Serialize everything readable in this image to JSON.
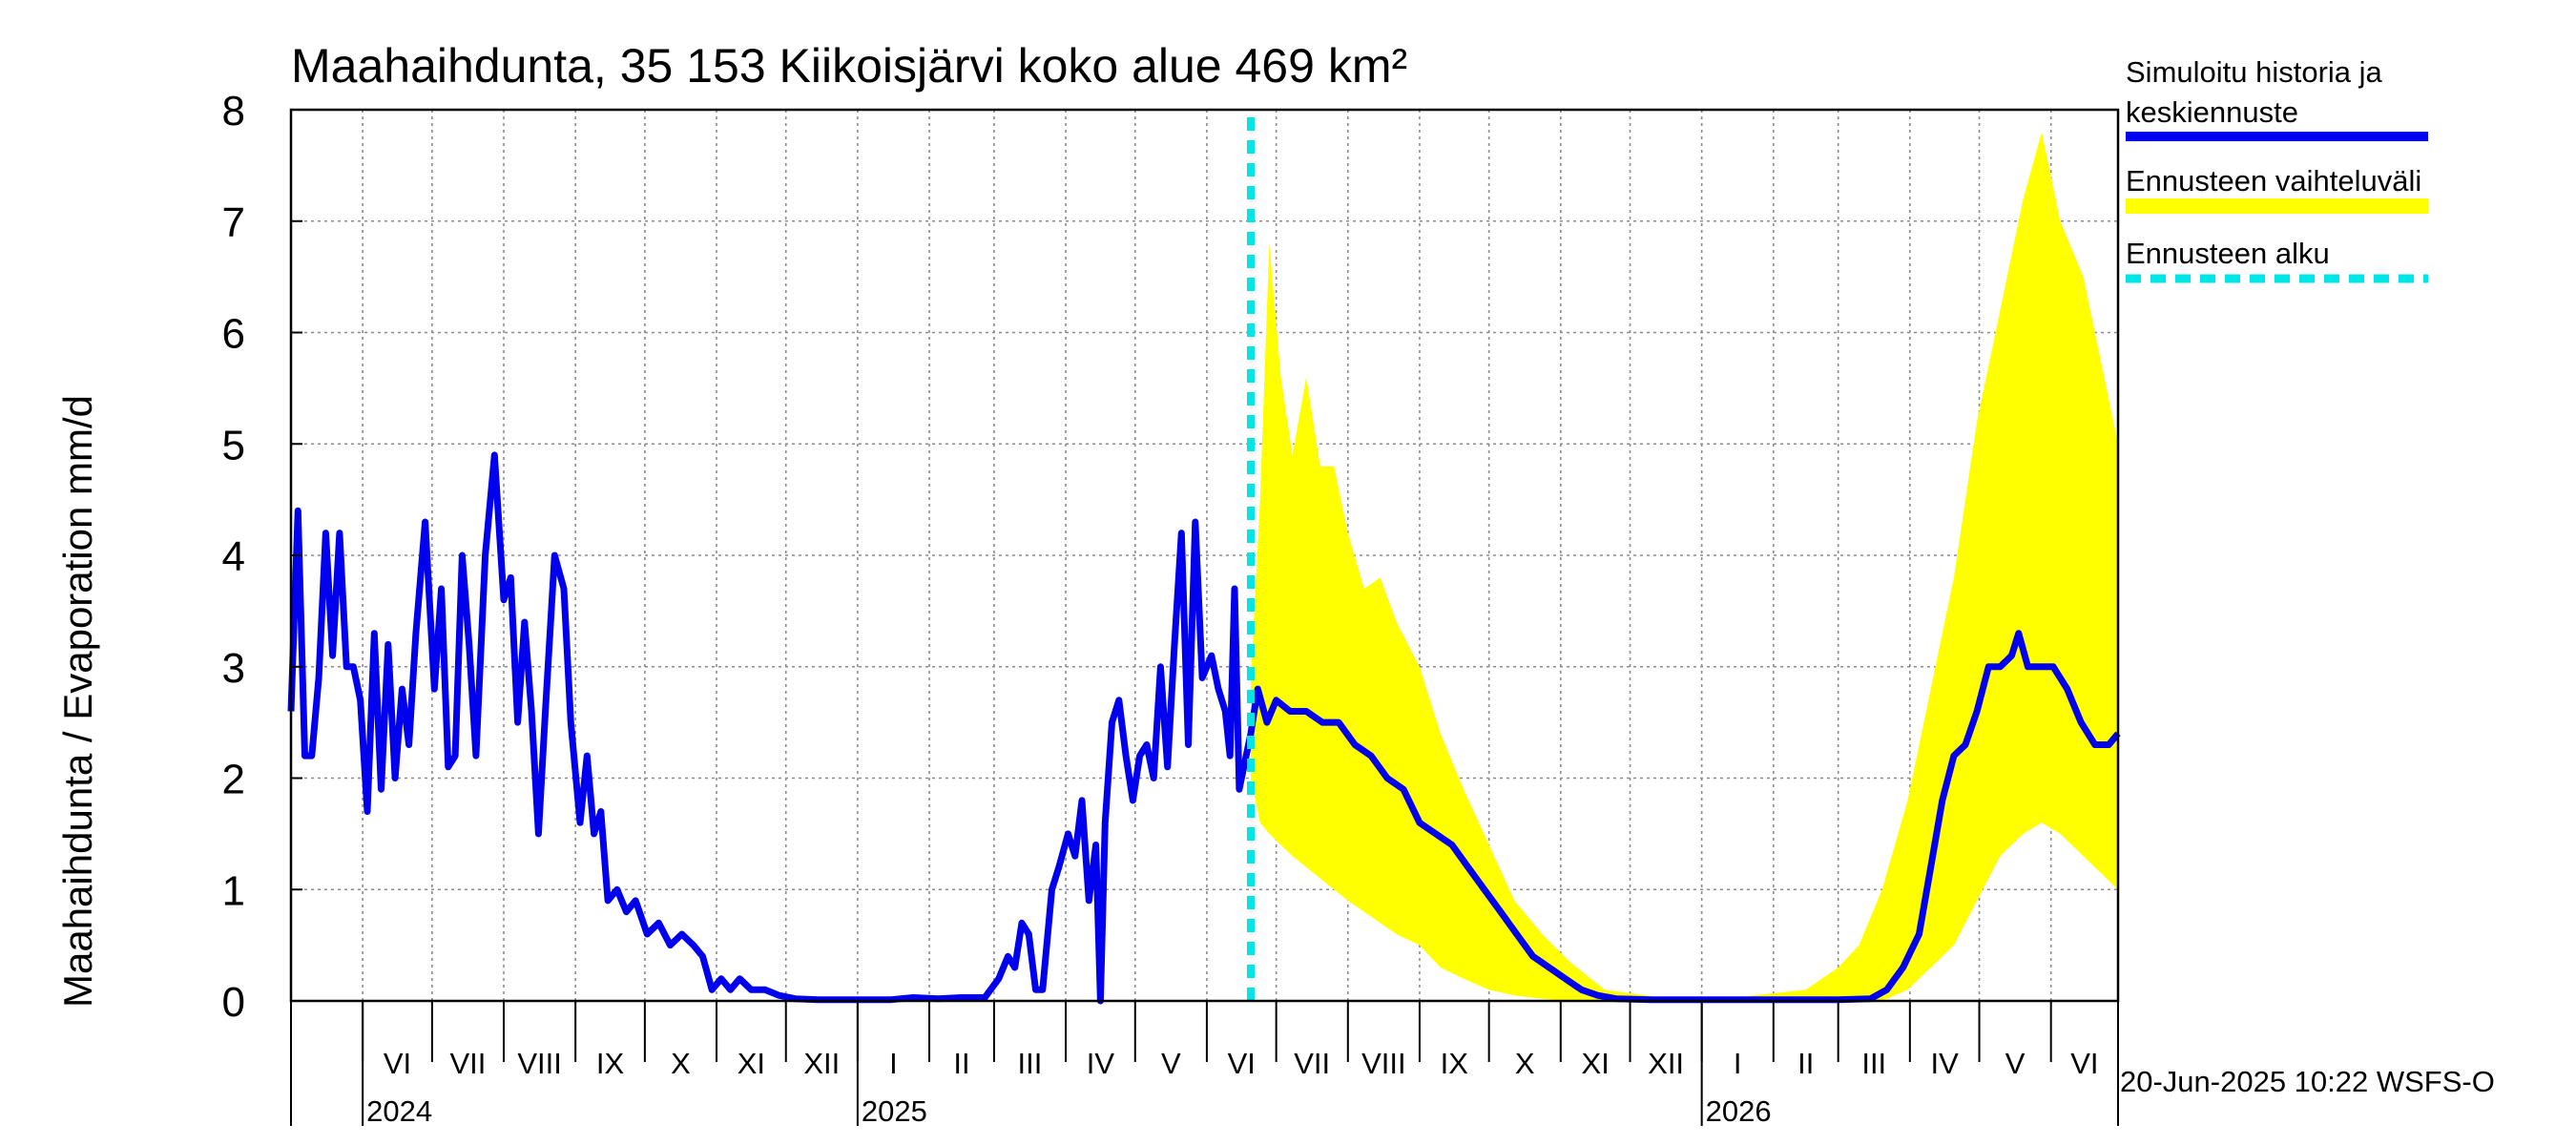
{
  "chart_data": {
    "type": "line",
    "title": "Maahaihdunta, 35 153 Kiikoisjärvi koko alue 469 km²",
    "ylabel": "Maahaihdunta / Evaporation   mm/d",
    "ylim": [
      0,
      8
    ],
    "yticks": [
      "0",
      "1",
      "2",
      "3",
      "4",
      "5",
      "6",
      "7",
      "8"
    ],
    "x_start": "2024-05-01",
    "x_end": "2026-06-30",
    "forecast_start": "2025-06-20",
    "months": [
      "VI",
      "VII",
      "VIII",
      "IX",
      "X",
      "XI",
      "XII",
      "I",
      "II",
      "III",
      "IV",
      "V",
      "VI",
      "VII",
      "VIII",
      "IX",
      "X",
      "XI",
      "XII",
      "I",
      "II",
      "III",
      "IV",
      "V",
      "VI"
    ],
    "month_starts": [
      "2024-06-01",
      "2024-07-01",
      "2024-08-01",
      "2024-09-01",
      "2024-10-01",
      "2024-11-01",
      "2024-12-01",
      "2025-01-01",
      "2025-02-01",
      "2025-03-01",
      "2025-04-01",
      "2025-05-01",
      "2025-06-01",
      "2025-07-01",
      "2025-08-01",
      "2025-09-01",
      "2025-10-01",
      "2025-11-01",
      "2025-12-01",
      "2026-01-01",
      "2026-02-01",
      "2026-03-01",
      "2026-04-01",
      "2026-05-01",
      "2026-06-01"
    ],
    "years": [
      {
        "label": "2024",
        "date": "2024-06-01"
      },
      {
        "label": "2025",
        "date": "2025-01-01"
      },
      {
        "label": "2026",
        "date": "2026-01-01"
      }
    ],
    "grid": true,
    "legend_position": "right",
    "series": [
      {
        "name": "Simuloitu historia ja keskiennuste",
        "color": "#0000ee",
        "points": [
          [
            "2024-05-01",
            2.6
          ],
          [
            "2024-05-04",
            4.4
          ],
          [
            "2024-05-07",
            2.2
          ],
          [
            "2024-05-10",
            2.2
          ],
          [
            "2024-05-13",
            2.9
          ],
          [
            "2024-05-16",
            4.2
          ],
          [
            "2024-05-19",
            3.1
          ],
          [
            "2024-05-22",
            4.2
          ],
          [
            "2024-05-25",
            3.0
          ],
          [
            "2024-05-28",
            3.0
          ],
          [
            "2024-05-31",
            2.7
          ],
          [
            "2024-06-03",
            1.7
          ],
          [
            "2024-06-06",
            3.3
          ],
          [
            "2024-06-09",
            1.9
          ],
          [
            "2024-06-12",
            3.2
          ],
          [
            "2024-06-15",
            2.0
          ],
          [
            "2024-06-18",
            2.8
          ],
          [
            "2024-06-21",
            2.3
          ],
          [
            "2024-06-24",
            3.3
          ],
          [
            "2024-06-28",
            4.3
          ],
          [
            "2024-07-02",
            2.8
          ],
          [
            "2024-07-05",
            3.7
          ],
          [
            "2024-07-08",
            2.1
          ],
          [
            "2024-07-11",
            2.2
          ],
          [
            "2024-07-14",
            4.0
          ],
          [
            "2024-07-17",
            3.2
          ],
          [
            "2024-07-20",
            2.2
          ],
          [
            "2024-07-24",
            4.0
          ],
          [
            "2024-07-28",
            4.9
          ],
          [
            "2024-08-01",
            3.6
          ],
          [
            "2024-08-04",
            3.8
          ],
          [
            "2024-08-07",
            2.5
          ],
          [
            "2024-08-10",
            3.4
          ],
          [
            "2024-08-13",
            2.6
          ],
          [
            "2024-08-16",
            1.5
          ],
          [
            "2024-08-19",
            2.6
          ],
          [
            "2024-08-23",
            4.0
          ],
          [
            "2024-08-27",
            3.7
          ],
          [
            "2024-08-30",
            2.5
          ],
          [
            "2024-09-03",
            1.6
          ],
          [
            "2024-09-06",
            2.2
          ],
          [
            "2024-09-09",
            1.5
          ],
          [
            "2024-09-12",
            1.7
          ],
          [
            "2024-09-15",
            0.9
          ],
          [
            "2024-09-19",
            1.0
          ],
          [
            "2024-09-23",
            0.8
          ],
          [
            "2024-09-27",
            0.9
          ],
          [
            "2024-10-02",
            0.6
          ],
          [
            "2024-10-07",
            0.7
          ],
          [
            "2024-10-12",
            0.5
          ],
          [
            "2024-10-17",
            0.6
          ],
          [
            "2024-10-22",
            0.5
          ],
          [
            "2024-10-26",
            0.4
          ],
          [
            "2024-10-30",
            0.1
          ],
          [
            "2024-11-03",
            0.2
          ],
          [
            "2024-11-07",
            0.1
          ],
          [
            "2024-11-11",
            0.2
          ],
          [
            "2024-11-16",
            0.1
          ],
          [
            "2024-11-22",
            0.1
          ],
          [
            "2024-11-28",
            0.05
          ],
          [
            "2024-12-05",
            0.02
          ],
          [
            "2024-12-15",
            0.01
          ],
          [
            "2024-12-31",
            0.01
          ],
          [
            "2025-01-15",
            0.01
          ],
          [
            "2025-01-25",
            0.03
          ],
          [
            "2025-02-05",
            0.02
          ],
          [
            "2025-02-15",
            0.03
          ],
          [
            "2025-02-25",
            0.03
          ],
          [
            "2025-03-03",
            0.2
          ],
          [
            "2025-03-07",
            0.4
          ],
          [
            "2025-03-10",
            0.3
          ],
          [
            "2025-03-13",
            0.7
          ],
          [
            "2025-03-16",
            0.6
          ],
          [
            "2025-03-19",
            0.1
          ],
          [
            "2025-03-22",
            0.1
          ],
          [
            "2025-03-26",
            1.0
          ],
          [
            "2025-03-29",
            1.2
          ],
          [
            "2025-04-02",
            1.5
          ],
          [
            "2025-04-05",
            1.3
          ],
          [
            "2025-04-08",
            1.8
          ],
          [
            "2025-04-11",
            0.9
          ],
          [
            "2025-04-14",
            1.4
          ],
          [
            "2025-04-16",
            0.0
          ],
          [
            "2025-04-18",
            1.6
          ],
          [
            "2025-04-21",
            2.5
          ],
          [
            "2025-04-24",
            2.7
          ],
          [
            "2025-04-27",
            2.2
          ],
          [
            "2025-04-30",
            1.8
          ],
          [
            "2025-05-03",
            2.2
          ],
          [
            "2025-05-06",
            2.3
          ],
          [
            "2025-05-09",
            2.0
          ],
          [
            "2025-05-12",
            3.0
          ],
          [
            "2025-05-15",
            2.1
          ],
          [
            "2025-05-18",
            3.2
          ],
          [
            "2025-05-21",
            4.2
          ],
          [
            "2025-05-24",
            2.3
          ],
          [
            "2025-05-27",
            4.3
          ],
          [
            "2025-05-30",
            2.9
          ],
          [
            "2025-06-03",
            3.1
          ],
          [
            "2025-06-06",
            2.8
          ],
          [
            "2025-06-09",
            2.6
          ],
          [
            "2025-06-11",
            2.2
          ],
          [
            "2025-06-13",
            3.7
          ],
          [
            "2025-06-15",
            1.9
          ],
          [
            "2025-06-17",
            2.1
          ],
          [
            "2025-06-20",
            2.4
          ],
          [
            "2025-06-23",
            2.8
          ],
          [
            "2025-06-27",
            2.5
          ],
          [
            "2025-07-01",
            2.7
          ],
          [
            "2025-07-07",
            2.6
          ],
          [
            "2025-07-14",
            2.6
          ],
          [
            "2025-07-21",
            2.5
          ],
          [
            "2025-07-28",
            2.5
          ],
          [
            "2025-08-04",
            2.3
          ],
          [
            "2025-08-11",
            2.2
          ],
          [
            "2025-08-18",
            2.0
          ],
          [
            "2025-08-25",
            1.9
          ],
          [
            "2025-09-01",
            1.6
          ],
          [
            "2025-09-08",
            1.5
          ],
          [
            "2025-09-15",
            1.4
          ],
          [
            "2025-09-22",
            1.2
          ],
          [
            "2025-09-29",
            1.0
          ],
          [
            "2025-10-06",
            0.8
          ],
          [
            "2025-10-13",
            0.6
          ],
          [
            "2025-10-20",
            0.4
          ],
          [
            "2025-10-27",
            0.3
          ],
          [
            "2025-11-03",
            0.2
          ],
          [
            "2025-11-10",
            0.1
          ],
          [
            "2025-11-17",
            0.05
          ],
          [
            "2025-11-25",
            0.02
          ],
          [
            "2025-12-10",
            0.01
          ],
          [
            "2026-01-01",
            0.01
          ],
          [
            "2026-02-01",
            0.01
          ],
          [
            "2026-03-01",
            0.01
          ],
          [
            "2026-03-15",
            0.02
          ],
          [
            "2026-03-22",
            0.1
          ],
          [
            "2026-03-29",
            0.3
          ],
          [
            "2026-04-05",
            0.6
          ],
          [
            "2026-04-10",
            1.2
          ],
          [
            "2026-04-15",
            1.8
          ],
          [
            "2026-04-20",
            2.2
          ],
          [
            "2026-04-25",
            2.3
          ],
          [
            "2026-04-30",
            2.6
          ],
          [
            "2026-05-05",
            3.0
          ],
          [
            "2026-05-10",
            3.0
          ],
          [
            "2026-05-15",
            3.1
          ],
          [
            "2026-05-18",
            3.3
          ],
          [
            "2026-05-22",
            3.0
          ],
          [
            "2026-05-28",
            3.0
          ],
          [
            "2026-06-02",
            3.0
          ],
          [
            "2026-06-08",
            2.8
          ],
          [
            "2026-06-14",
            2.5
          ],
          [
            "2026-06-20",
            2.3
          ],
          [
            "2026-06-26",
            2.3
          ],
          [
            "2026-06-30",
            2.4
          ]
        ]
      },
      {
        "name": "Ennusteen vaihteluväli",
        "color": "#ffff00",
        "band": [
          [
            "2025-06-20",
            2.0,
            2.9
          ],
          [
            "2025-06-24",
            1.6,
            4.5
          ],
          [
            "2025-06-28",
            1.5,
            6.8
          ],
          [
            "2025-07-03",
            1.4,
            5.6
          ],
          [
            "2025-07-08",
            1.3,
            4.9
          ],
          [
            "2025-07-14",
            1.2,
            5.6
          ],
          [
            "2025-07-20",
            1.1,
            4.8
          ],
          [
            "2025-07-26",
            1.0,
            4.8
          ],
          [
            "2025-08-01",
            0.9,
            4.2
          ],
          [
            "2025-08-08",
            0.8,
            3.7
          ],
          [
            "2025-08-15",
            0.7,
            3.8
          ],
          [
            "2025-08-22",
            0.6,
            3.4
          ],
          [
            "2025-09-01",
            0.5,
            3.0
          ],
          [
            "2025-09-10",
            0.3,
            2.4
          ],
          [
            "2025-09-20",
            0.2,
            1.9
          ],
          [
            "2025-10-01",
            0.1,
            1.4
          ],
          [
            "2025-10-12",
            0.05,
            0.9
          ],
          [
            "2025-10-24",
            0.02,
            0.6
          ],
          [
            "2025-11-05",
            0.0,
            0.35
          ],
          [
            "2025-11-20",
            0.0,
            0.1
          ],
          [
            "2025-12-15",
            0.0,
            0.03
          ],
          [
            "2026-01-15",
            0.0,
            0.03
          ],
          [
            "2026-02-15",
            0.0,
            0.1
          ],
          [
            "2026-03-01",
            0.0,
            0.3
          ],
          [
            "2026-03-10",
            0.0,
            0.5
          ],
          [
            "2026-03-20",
            0.0,
            1.0
          ],
          [
            "2026-03-31",
            0.1,
            1.8
          ],
          [
            "2026-04-10",
            0.3,
            2.8
          ],
          [
            "2026-04-20",
            0.5,
            3.8
          ],
          [
            "2026-04-30",
            0.9,
            5.2
          ],
          [
            "2026-05-10",
            1.3,
            6.2
          ],
          [
            "2026-05-20",
            1.5,
            7.2
          ],
          [
            "2026-05-28",
            1.6,
            7.8
          ],
          [
            "2026-06-05",
            1.5,
            7.0
          ],
          [
            "2026-06-15",
            1.3,
            6.5
          ],
          [
            "2026-06-30",
            1.0,
            5.0
          ]
        ]
      },
      {
        "name": "Ennusteen alku",
        "color": "#00e5e5"
      }
    ],
    "footer": "20-Jun-2025 10:22 WSFS-O"
  }
}
